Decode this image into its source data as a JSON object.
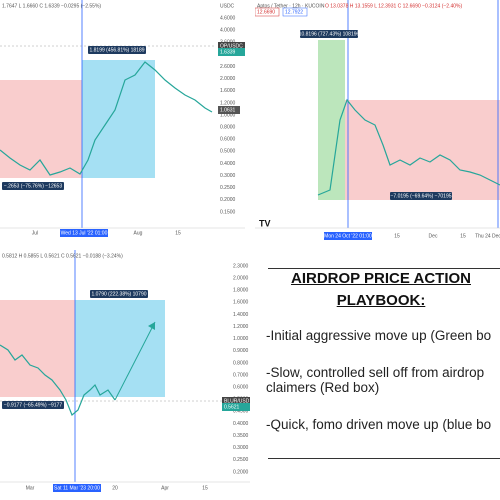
{
  "panels": [
    {
      "header": "1.7647  L 1.6660  C 1.6339  −0.0295 (−2.55%)",
      "y_labels": [
        "USDC",
        "4.6000",
        "4.0000",
        "3.6000",
        "3.0000",
        "2.6000",
        "2.0000",
        "1.6000",
        "1.2000",
        "1.0000",
        "0.8000",
        "0.6000",
        "0.5000",
        "0.4000",
        "0.3000",
        "0.2500",
        "0.2000",
        "0.1500"
      ],
      "x_labels": [
        "Jul",
        "Wed 13 Jul '22  01:00",
        "Aug",
        "15"
      ],
      "price_tag": [
        "OP/USDC",
        "1.6339"
      ],
      "second_tag": "1.0631",
      "up_label": "1.8199 (456.81%) 18189",
      "down_label": "−.2653 (−75.76%) −12653"
    },
    {
      "header": "Aptos / Tether · 12h · KUCOIN",
      "ohlc": "O 13.0378  H 13.1559  L 12.3931  C 12.6690  −0.3124 (−2.40%)",
      "chips": [
        "12.6690",
        "12.7922"
      ],
      "x_labels": [
        "Mon 24 Oct '22  01:00",
        "15",
        "Dec",
        "15",
        "Thu 24 Dec"
      ],
      "up_label": "10.8196 (727.43%) 108196",
      "down_label": "−7.0195 (−69.64%) −70195"
    },
    {
      "header": "0.5812  H 0.5855  L 0.5621  C 0.5621  −0.0188 (−3.24%)",
      "y_labels": [
        "2.3000",
        "2.0000",
        "1.8000",
        "1.6000",
        "1.4000",
        "1.2000",
        "1.0000",
        "0.9000",
        "0.8000",
        "0.7000",
        "0.6000",
        "0.5000",
        "0.4500",
        "0.4000",
        "0.3500",
        "0.3000",
        "0.2500",
        "0.2000"
      ],
      "x_labels": [
        "Mar",
        "Sat 11 Mar '23  20:00",
        "20",
        "Apr",
        "15"
      ],
      "price_tag": [
        "BLUR/USD",
        "0.5621"
      ],
      "up_label": "1.0790 (222.38%) 10790",
      "down_label": "−0.9177 (−65.49%) −9177"
    }
  ],
  "notes": {
    "title_line1": "AIRDROP PRICE ACTION",
    "title_line2": "PLAYBOOK:",
    "lines": [
      "-Initial aggressive move up (Green bo",
      "-Slow, controlled sell off from airdrop",
      "claimers (Red box)",
      "-Quick, fomo driven move up (blue bo"
    ]
  }
}
